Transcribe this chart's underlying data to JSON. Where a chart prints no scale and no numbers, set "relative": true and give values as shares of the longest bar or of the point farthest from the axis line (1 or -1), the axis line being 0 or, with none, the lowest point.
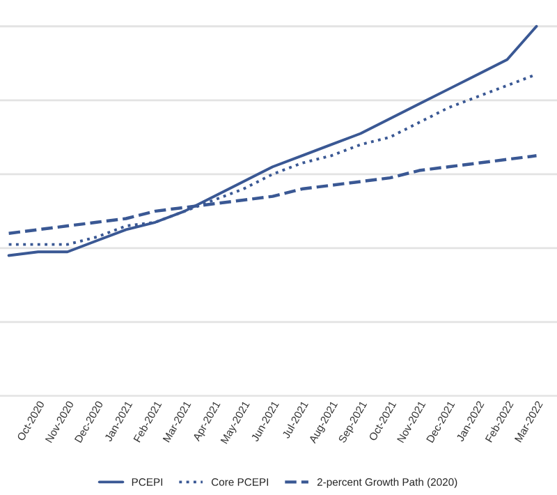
{
  "chart_data": {
    "type": "line",
    "relative": true,
    "grid": "y",
    "legend": "bottom",
    "categories": [
      null,
      "Oct-2020",
      "Nov-2020",
      "Dec-2020",
      "Jan-2021",
      "Feb-2021",
      "Mar-2021",
      "Apr-2021",
      "May-2021",
      "Jun-2021",
      "Jul-2021",
      "Aug-2021",
      "Sep-2021",
      "Oct-2021",
      "Nov-2021",
      "Dec-2021",
      "Jan-2022",
      "Feb-2022",
      "Mar-2022"
    ],
    "series": [
      {
        "name": "PCEPI",
        "color": "#3a5894",
        "line_style": "solid",
        "values": [
          0.38,
          0.39,
          0.39,
          0.42,
          0.45,
          0.47,
          0.5,
          0.54,
          0.58,
          0.62,
          0.65,
          0.68,
          0.71,
          0.75,
          0.79,
          0.83,
          0.87,
          0.91,
          1.0
        ]
      },
      {
        "name": "Core PCEPI",
        "color": "#3a5894",
        "line_style": "dotted",
        "values": [
          0.41,
          0.41,
          0.41,
          0.43,
          0.46,
          0.47,
          0.5,
          0.53,
          0.56,
          0.6,
          0.63,
          0.65,
          0.68,
          0.7,
          0.74,
          0.78,
          0.81,
          0.84,
          0.87
        ]
      },
      {
        "name": "2-percent Growth Path (2020)",
        "color": "#3a5894",
        "line_style": "dashed",
        "values": [
          0.44,
          0.45,
          0.46,
          0.47,
          0.48,
          0.5,
          0.51,
          0.52,
          0.53,
          0.54,
          0.56,
          0.57,
          0.58,
          0.59,
          0.61,
          0.62,
          0.63,
          0.64,
          0.65
        ]
      }
    ]
  }
}
